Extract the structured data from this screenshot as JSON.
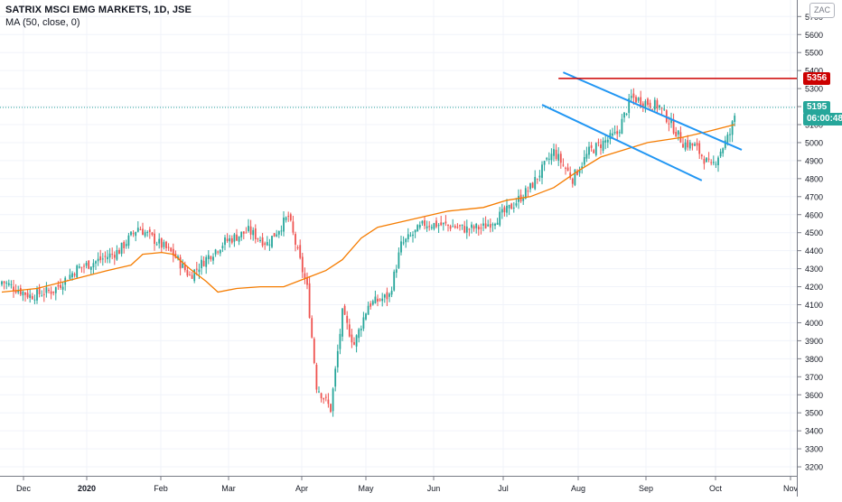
{
  "header": {
    "title": "SATRIX MSCI EMG MARKETS, 1D, JSE",
    "ma_label": "MA (50, close, 0)",
    "currency": "ZAC"
  },
  "price_tags": {
    "resistance": "5356",
    "last_price": "5195",
    "countdown": "06:00:48"
  },
  "colors": {
    "up": "#26a69a",
    "down": "#ef5350",
    "ma": "#f57c00",
    "channel": "#2196f3",
    "resistance": "#cc0000",
    "last_price": "#26a69a",
    "grid": "#f0f3fa"
  },
  "chart_data": {
    "type": "candlestick",
    "title": "SATRIX MSCI EMG MARKETS, 1D, JSE",
    "y_ticks": [
      3200,
      3300,
      3400,
      3500,
      3600,
      3700,
      3800,
      3900,
      4000,
      4100,
      4200,
      4300,
      4400,
      4500,
      4600,
      4700,
      4800,
      4900,
      5000,
      5100,
      5200,
      5300,
      5400,
      5500,
      5600,
      5700
    ],
    "ylim": [
      3130,
      5830
    ],
    "x_tick_labels": [
      "Dec",
      "2020",
      "Feb",
      "Mar",
      "Apr",
      "May",
      "Jun",
      "Jul",
      "Aug",
      "Sep",
      "Oct",
      "Nov"
    ],
    "close_path": [
      [
        0,
        4230
      ],
      [
        12,
        4150
      ],
      [
        22,
        4180
      ],
      [
        32,
        4300
      ],
      [
        42,
        4350
      ],
      [
        50,
        4400
      ],
      [
        58,
        4530
      ],
      [
        65,
        4460
      ],
      [
        73,
        4380
      ],
      [
        80,
        4260
      ],
      [
        88,
        4370
      ],
      [
        95,
        4450
      ],
      [
        105,
        4510
      ],
      [
        113,
        4440
      ],
      [
        122,
        4590
      ],
      [
        130,
        4190
      ],
      [
        134,
        3650
      ],
      [
        140,
        3520
      ],
      [
        145,
        4050
      ],
      [
        150,
        3880
      ],
      [
        156,
        4100
      ],
      [
        165,
        4150
      ],
      [
        170,
        4430
      ],
      [
        180,
        4550
      ],
      [
        190,
        4540
      ],
      [
        198,
        4520
      ],
      [
        205,
        4530
      ],
      [
        215,
        4620
      ],
      [
        225,
        4750
      ],
      [
        235,
        4950
      ],
      [
        243,
        4800
      ],
      [
        250,
        4950
      ],
      [
        262,
        5050
      ],
      [
        268,
        5250
      ],
      [
        280,
        5200
      ],
      [
        290,
        5000
      ],
      [
        295,
        4980
      ],
      [
        302,
        4860
      ],
      [
        310,
        5050
      ],
      [
        312,
        5150
      ]
    ],
    "ma_path": [
      [
        0,
        4170
      ],
      [
        15,
        4190
      ],
      [
        30,
        4240
      ],
      [
        45,
        4290
      ],
      [
        55,
        4320
      ],
      [
        60,
        4380
      ],
      [
        68,
        4390
      ],
      [
        73,
        4380
      ],
      [
        80,
        4300
      ],
      [
        87,
        4230
      ],
      [
        92,
        4170
      ],
      [
        100,
        4190
      ],
      [
        110,
        4200
      ],
      [
        120,
        4200
      ],
      [
        130,
        4250
      ],
      [
        138,
        4290
      ],
      [
        145,
        4350
      ],
      [
        153,
        4470
      ],
      [
        160,
        4530
      ],
      [
        170,
        4560
      ],
      [
        180,
        4590
      ],
      [
        190,
        4620
      ],
      [
        205,
        4640
      ],
      [
        215,
        4680
      ],
      [
        225,
        4700
      ],
      [
        235,
        4750
      ],
      [
        245,
        4840
      ],
      [
        255,
        4920
      ],
      [
        265,
        4960
      ],
      [
        275,
        5000
      ],
      [
        290,
        5030
      ],
      [
        300,
        5060
      ],
      [
        312,
        5100
      ]
    ],
    "moving_average": {
      "name": "MA (50, close, 0)",
      "period": 50
    },
    "channel": {
      "upper": [
        [
          239,
          5390
        ],
        [
          315,
          4960
        ]
      ],
      "lower": [
        [
          230,
          5210
        ],
        [
          298,
          4790
        ]
      ]
    },
    "resistance_level": 5356,
    "last_price": 5195,
    "grid": true
  }
}
